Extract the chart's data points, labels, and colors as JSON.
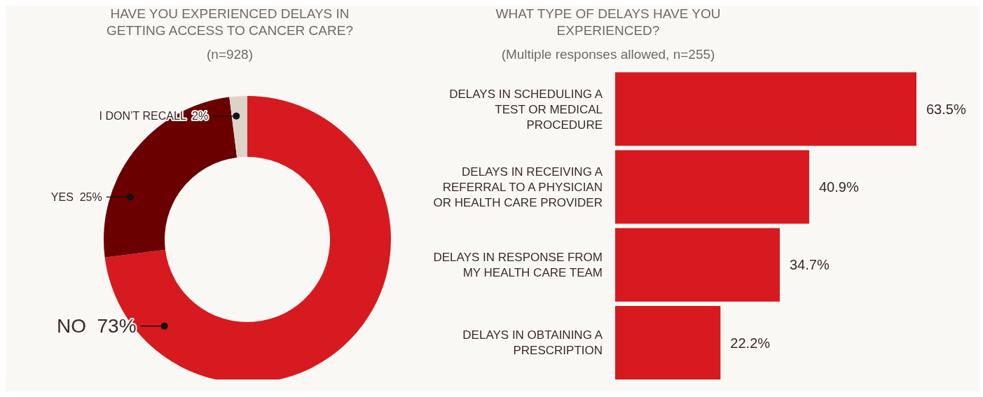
{
  "chart_data": [
    {
      "type": "donut",
      "title": "HAVE YOU EXPERIENCED DELAYS IN GETTING ACCESS TO CANCER CARE?",
      "subtitle": "(n=928)",
      "categories": [
        "NO",
        "YES",
        "I DON’T RECALL"
      ],
      "values": [
        73,
        25,
        2
      ],
      "value_labels": [
        "73%",
        "25%",
        "2%"
      ],
      "colors": [
        "#d71920",
        "#6b0000",
        "#ddd3c6"
      ]
    },
    {
      "type": "bar",
      "orientation": "horizontal",
      "title": "WHAT TYPE OF DELAYS HAVE YOU EXPERIENCED?",
      "subtitle": "(Multiple responses allowed, n=255)",
      "categories": [
        "DELAYS IN SCHEDULING A TEST OR MEDICAL PROCEDURE",
        "DELAYS IN RECEIVING A REFERRAL TO A PHYSICIAN OR HEALTH CARE PROVIDER",
        "DELAYS IN RESPONSE FROM MY HEALTH CARE TEAM",
        "DELAYS IN OBTAINING A PRESCRIPTION"
      ],
      "values": [
        63.5,
        40.9,
        34.7,
        22.2
      ],
      "value_labels": [
        "63.5%",
        "40.9%",
        "34.7%",
        "22.2%"
      ],
      "color": "#d71920"
    }
  ]
}
